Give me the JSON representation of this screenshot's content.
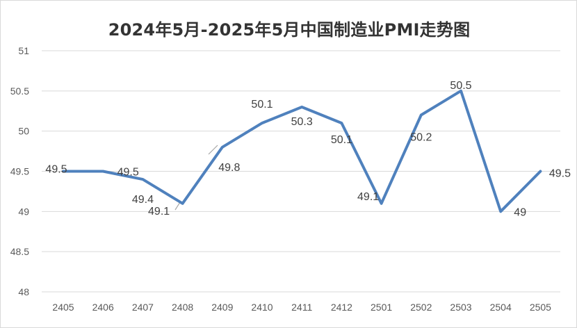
{
  "chart_data": {
    "type": "line",
    "title": "2024年5月-2025年5月中国制造业PMI走势图",
    "categories": [
      "2405",
      "2406",
      "2407",
      "2408",
      "2409",
      "2410",
      "2411",
      "2412",
      "2501",
      "2502",
      "2503",
      "2504",
      "2505"
    ],
    "series": [
      {
        "values": [
          49.5,
          49.5,
          49.4,
          49.1,
          49.8,
          50.1,
          50.3,
          50.1,
          49.1,
          50.2,
          50.5,
          49.0,
          49.5
        ]
      }
    ],
    "data_labels": [
      "49.5",
      "49.5",
      "49.4",
      "49.1",
      "49.8",
      "50.1",
      "50.3",
      "50.1",
      "49.1",
      "50.2",
      "50.5",
      "49",
      "49.5"
    ],
    "yticks": [
      "48",
      "48.5",
      "49",
      "49.5",
      "50",
      "50.5",
      "51"
    ],
    "ylim": [
      48,
      51
    ],
    "xlabel": "",
    "ylabel": "",
    "grid": true,
    "legend": "none",
    "line_color": "#4f81bd",
    "grid_color": "#d9d9d9"
  }
}
